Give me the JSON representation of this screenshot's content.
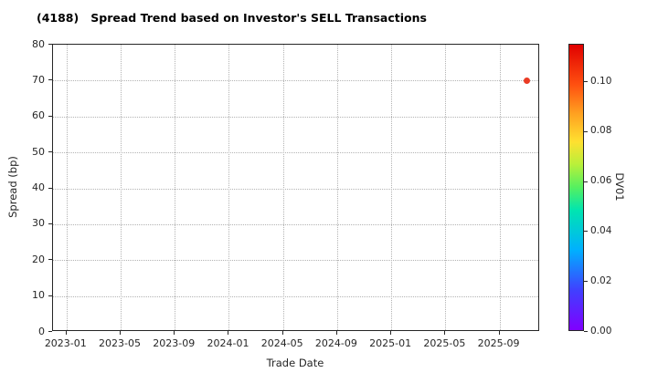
{
  "chart_data": {
    "type": "scatter",
    "title": "(4188)   Spread Trend based on Investor's SELL Transactions",
    "xlabel": "Trade Date",
    "ylabel": "Spread (bp)",
    "x_ticks": [
      "2023-01",
      "2023-05",
      "2023-09",
      "2024-01",
      "2024-05",
      "2024-09",
      "2025-01",
      "2025-05",
      "2025-09"
    ],
    "x_min": "2022-12",
    "x_max": "2025-12",
    "y_ticks": [
      0,
      10,
      20,
      30,
      40,
      50,
      60,
      70,
      80
    ],
    "ylim": [
      0,
      80
    ],
    "grid": "dotted",
    "legend": "none",
    "points": [
      {
        "date": "2025-11",
        "spread_bp": 70,
        "dv01": 0.096,
        "color": "#ea3b24"
      }
    ],
    "colorbar": {
      "label": "DV01",
      "ticks": [
        "0.00",
        "0.02",
        "0.04",
        "0.06",
        "0.08",
        "0.10"
      ],
      "vmin": 0.0,
      "vmax": 0.115,
      "colormap": "rainbow"
    }
  }
}
